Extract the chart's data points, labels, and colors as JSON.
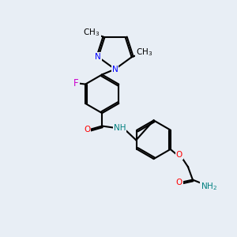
{
  "background_color": "#e8eef5",
  "title": "",
  "figsize": [
    3.0,
    3.0
  ],
  "dpi": 100,
  "atoms": {
    "colors": {
      "C": "#000000",
      "N": "#0000ff",
      "O": "#ff0000",
      "F": "#ff00ff",
      "H": "#008080"
    }
  },
  "bond_color": "#000000",
  "bond_width": 1.5,
  "font_size": 7.5,
  "label_font_size": 7.5
}
